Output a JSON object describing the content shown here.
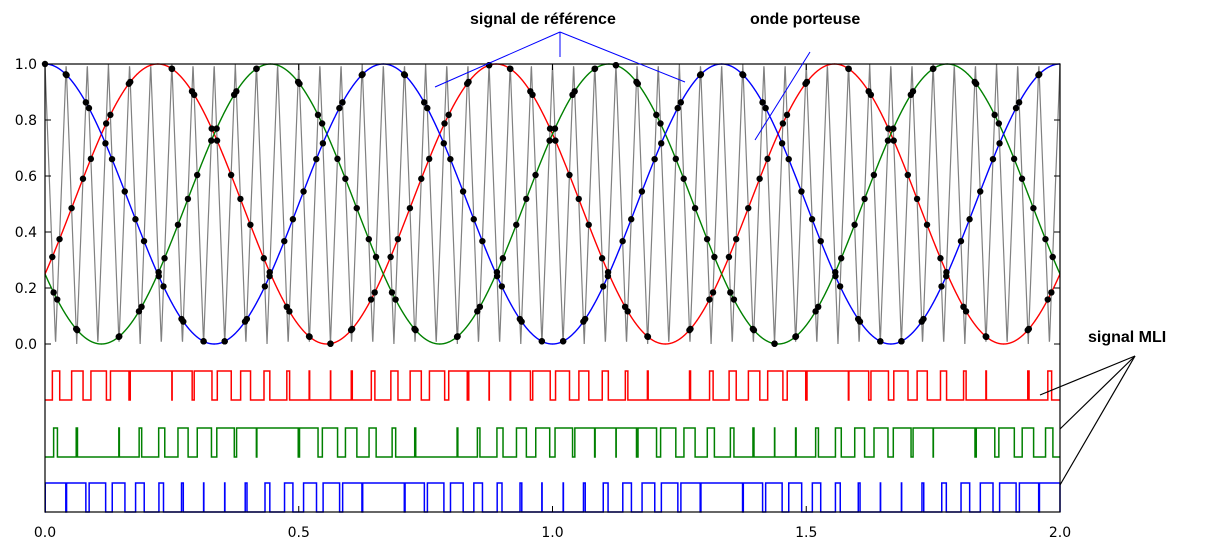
{
  "chart_data": {
    "type": "line",
    "x": {
      "range": [
        0,
        2
      ],
      "ticks": [
        0.0,
        0.5,
        1.0,
        1.5,
        2.0
      ],
      "tick_labels": [
        "0.0",
        "0.5",
        "1.0",
        "1.5",
        "2.0"
      ]
    },
    "y": {
      "range": [
        0,
        1
      ],
      "ticks": [
        0.0,
        0.2,
        0.4,
        0.6,
        0.8,
        1.0
      ],
      "tick_labels": [
        "0.0",
        "0.2",
        "0.4",
        "0.6",
        "0.8",
        "1.0"
      ]
    },
    "reference_signals": [
      {
        "color": "#ff0000",
        "frequency": 1.5,
        "phase_deg": 120,
        "min": 0.0,
        "max": 1.0
      },
      {
        "color": "#008000",
        "frequency": 1.5,
        "phase_deg": 240,
        "min": 0.0,
        "max": 1.0
      },
      {
        "color": "#0000ff",
        "frequency": 1.5,
        "phase_deg": 0,
        "min": 0.0,
        "max": 1.0
      }
    ],
    "carrier_wave": {
      "color": "#808080",
      "shape": "triangle",
      "frequency": 24,
      "min": 0.0,
      "max": 1.0
    },
    "intersection_marker_color": "#000000",
    "pwm_signals": [
      {
        "color": "#ff0000",
        "reference_index": 0
      },
      {
        "color": "#008000",
        "reference_index": 1
      },
      {
        "color": "#0000ff",
        "reference_index": 2
      }
    ],
    "annotations": [
      {
        "text": "signal de référence"
      },
      {
        "text": "onde porteuse"
      },
      {
        "text": "signal MLI"
      }
    ]
  }
}
